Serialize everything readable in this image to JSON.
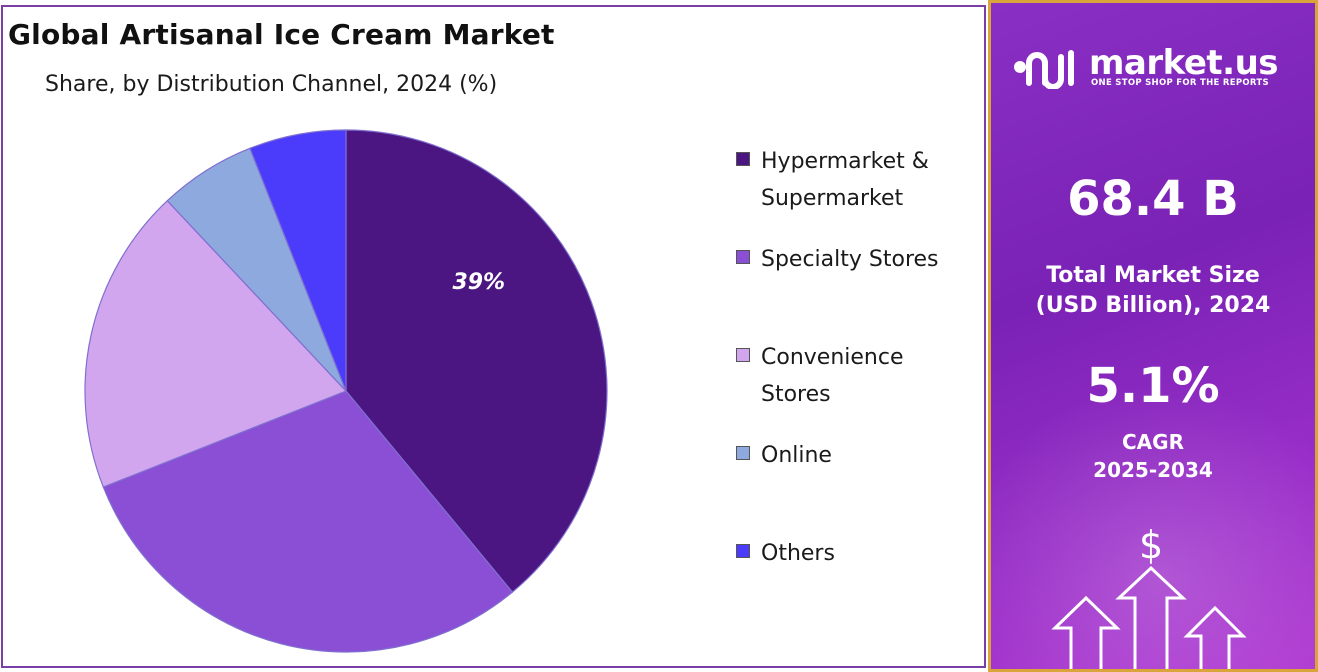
{
  "chart_data": {
    "type": "pie",
    "title": "Global Artisanal Ice Cream Market",
    "subtitle": "Share, by Distribution Channel, 2024 (%)",
    "series": [
      {
        "name": "Hypermarket & Supermarket",
        "value": 39,
        "color": "#4b1582",
        "label": "39%"
      },
      {
        "name": "Specialty Stores",
        "value": 30,
        "color": "#8a4fd4",
        "label": ""
      },
      {
        "name": "Convenience Stores",
        "value": 19,
        "color": "#d2a6ee",
        "label": ""
      },
      {
        "name": "Online",
        "value": 6,
        "color": "#8ea9de",
        "label": ""
      },
      {
        "name": "Others",
        "value": 6,
        "color": "#4a3cfa",
        "label": ""
      }
    ],
    "legend_position": "right"
  },
  "colors": {
    "panel_border": "#7a3fa6",
    "brand_frame": "#d9a53a",
    "brand_panel_top": "#8a2fc4",
    "brand_panel_bottom": "#b03ad2",
    "slice_edge": "#7f6fd0"
  },
  "brand": {
    "name": "market.us",
    "tagline": "ONE STOP SHOP FOR THE REPORTS",
    "logo_icon": "market-us-logo-icon"
  },
  "stats": {
    "market_size_value": "68.4 B",
    "market_size_label_line1": "Total Market Size",
    "market_size_label_line2": "(USD Billion), 2024",
    "cagr_value": "5.1%",
    "cagr_label_line1": "CAGR",
    "cagr_label_line2": "2025-2034",
    "dollar_symbol": "$"
  }
}
